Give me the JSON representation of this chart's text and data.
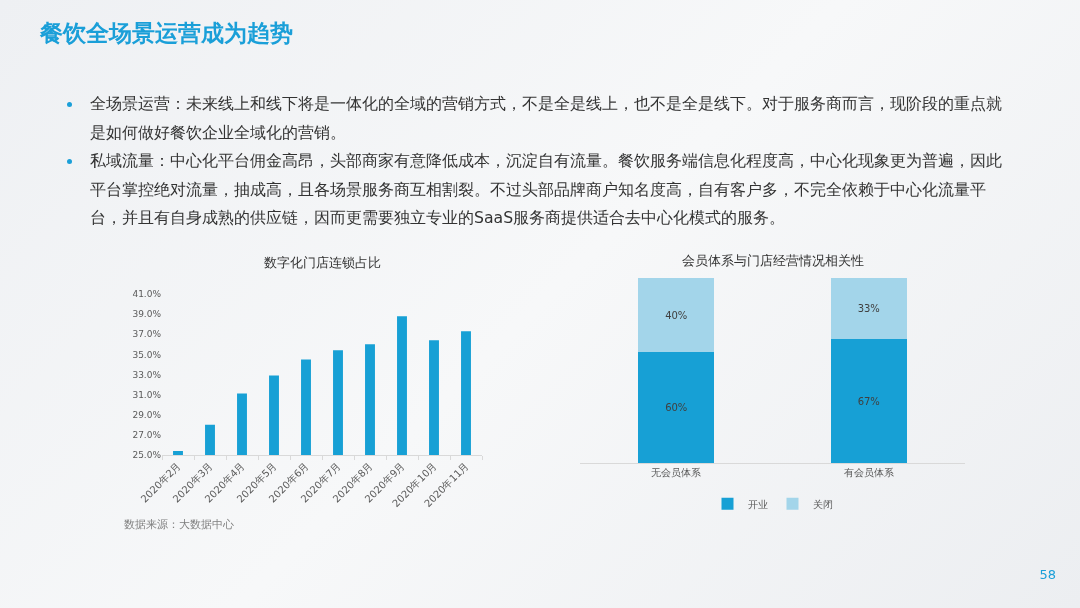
{
  "chart_data": [
    {
      "type": "other",
      "title": "餐饮全场景运营成为趋势",
      "annotations": [
        "全场景运营：未来线上和线下将是一体化的全域的营销方式，不是全是线上，也不是全是线下。对于服务商而言，现阶段的重点就是如何做好餐饮企业全域化的营销。",
        "私域流量：中心化平台佣金高昂，头部商家有意降低成本，沉淀自有流量。餐饮服务端信息化程度高，中心化现象更为普遍，因此平台掌控绝对流量，抽成高，且各场景服务商互相割裂。不过头部品牌商户知名度高，自有客户多，不完全依赖于中心化流量平台，并且有自身成熟的供应链，因而更需要独立专业的SaaS服务商提供适合去中心化模式的服务。",
        "58"
      ]
    },
    {
      "type": "bar",
      "title": "数字化门店连锁占比",
      "categories": [
        "2020年2月",
        "2020年3月",
        "2020年4月",
        "2020年5月",
        "2020年6月",
        "2020年7月",
        "2020年8月",
        "2020年9月",
        "2020年10月",
        "2020年11月"
      ],
      "values": [
        25.4,
        28.0,
        31.1,
        32.9,
        34.5,
        35.4,
        36.0,
        38.8,
        36.4,
        37.3
      ],
      "color": "#17a0d5",
      "ylim": [
        25,
        41
      ],
      "yticks": [
        {
          "value": 25,
          "label": "25.0%"
        },
        {
          "value": 27,
          "label": "27.0%"
        },
        {
          "value": 29,
          "label": "29.0%"
        },
        {
          "value": 31,
          "label": "31.0%"
        },
        {
          "value": 33,
          "label": "33.0%"
        },
        {
          "value": 35,
          "label": "35.0%"
        },
        {
          "value": 37,
          "label": "37.0%"
        },
        {
          "value": 39,
          "label": "39.0%"
        },
        {
          "value": 41,
          "label": "41.0%"
        }
      ],
      "annotations": [
        "数据来源：大数据中心"
      ]
    },
    {
      "type": "bar",
      "title": "会员体系与门店经营情况相关性",
      "categories": [
        "无会员体系",
        "有会员体系"
      ],
      "series": [
        {
          "name": "开业",
          "color": "#17a0d5",
          "values": [
            60,
            67
          ],
          "value_labels": [
            "60%",
            "67%"
          ]
        },
        {
          "name": "关闭",
          "color": "#a3d5ea",
          "values": [
            40,
            33
          ],
          "value_labels": [
            "40%",
            "33%"
          ]
        }
      ],
      "stacked": true,
      "ylim": [
        0,
        100
      ],
      "tick_labels": "x",
      "legend": "bottom"
    }
  ]
}
